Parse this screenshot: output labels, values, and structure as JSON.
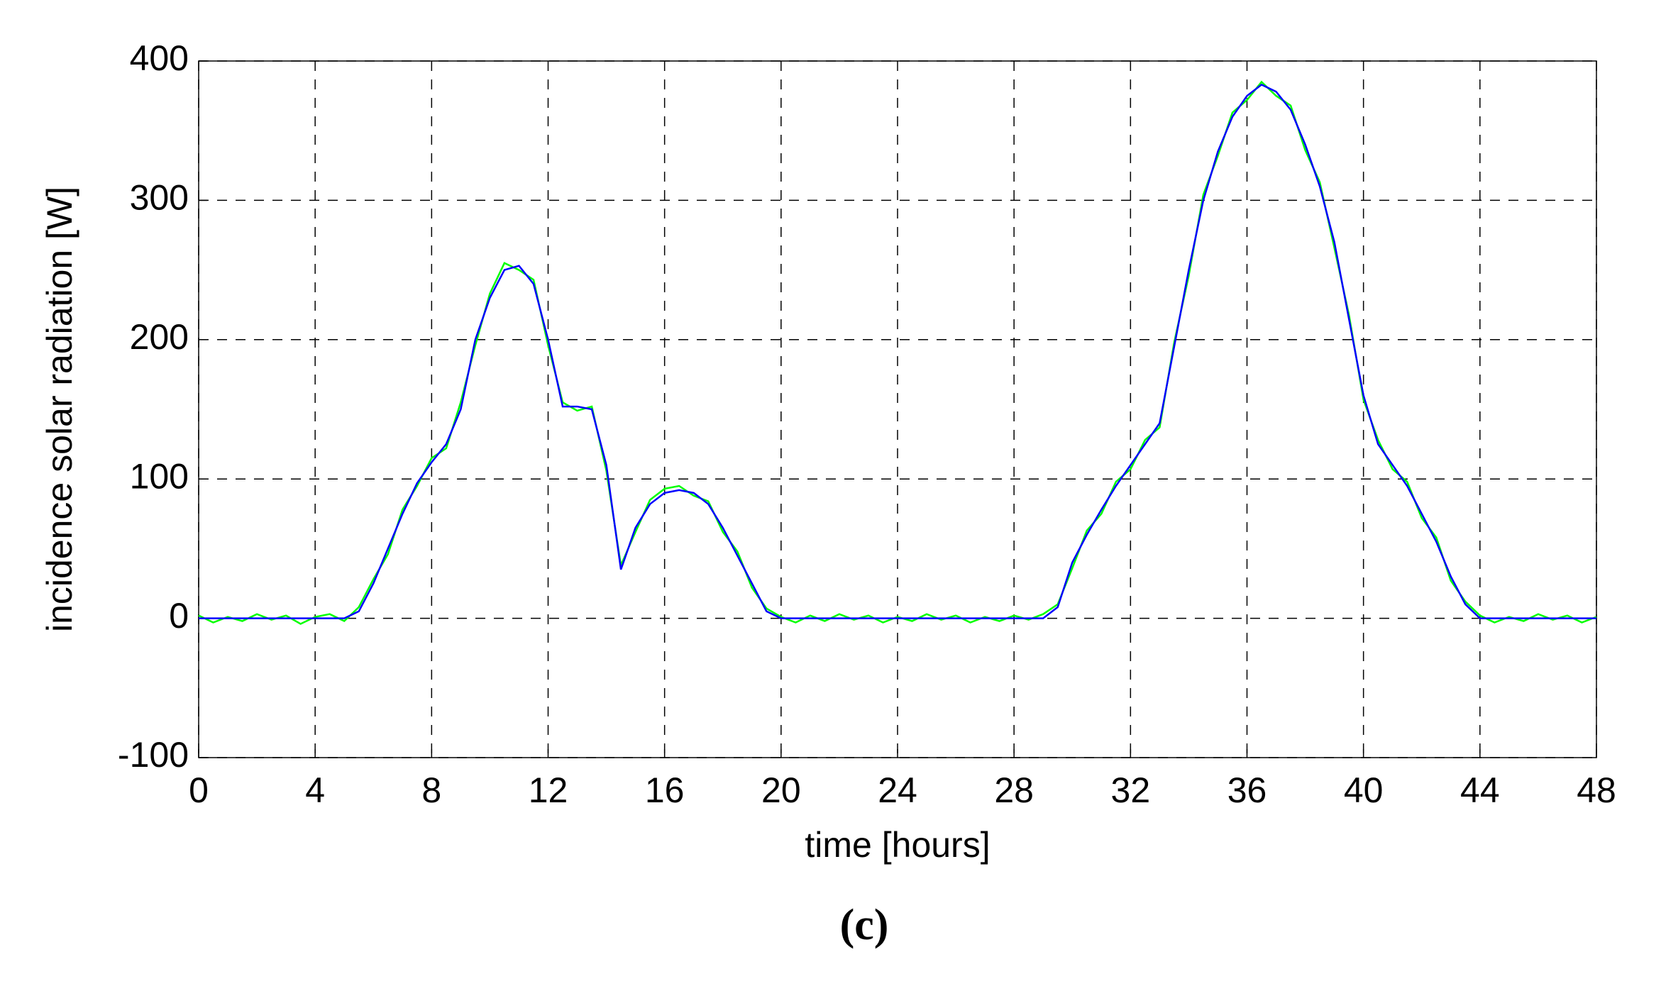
{
  "chart_data": {
    "type": "line",
    "xlabel": "time [hours]",
    "ylabel": "incidence solar radiation [W]",
    "caption": "(c)",
    "x": [
      0,
      0.5,
      1,
      1.5,
      2,
      2.5,
      3,
      3.5,
      4,
      4.5,
      5,
      5.5,
      6,
      6.5,
      7,
      7.5,
      8,
      8.5,
      9,
      9.5,
      10,
      10.5,
      11,
      11.5,
      12,
      12.5,
      13,
      13.5,
      14,
      14.5,
      15,
      15.5,
      16,
      16.5,
      17,
      17.5,
      18,
      18.5,
      19,
      19.5,
      20,
      20.5,
      21,
      21.5,
      22,
      22.5,
      23,
      23.5,
      24,
      24.5,
      25,
      25.5,
      26,
      26.5,
      27,
      27.5,
      28,
      28.5,
      29,
      29.5,
      30,
      30.5,
      31,
      31.5,
      32,
      32.5,
      33,
      33.5,
      34,
      34.5,
      35,
      35.5,
      36,
      36.5,
      37,
      37.5,
      38,
      38.5,
      39,
      39.5,
      40,
      40.5,
      41,
      41.5,
      42,
      42.5,
      43,
      43.5,
      44,
      44.5,
      45,
      45.5,
      46,
      46.5,
      47,
      47.5,
      48
    ],
    "series": [
      {
        "color": "#00ff00",
        "values": [
          2,
          -3,
          1,
          -2,
          3,
          -1,
          2,
          -4,
          1,
          3,
          -2,
          8,
          28,
          46,
          78,
          95,
          115,
          122,
          155,
          196,
          233,
          255,
          250,
          243,
          196,
          155,
          149,
          152,
          106,
          38,
          62,
          85,
          93,
          95,
          88,
          84,
          62,
          48,
          22,
          7,
          1,
          -3,
          2,
          -2,
          3,
          -1,
          2,
          -3,
          1,
          -2,
          3,
          -1,
          2,
          -3,
          1,
          -2,
          2,
          -1,
          3,
          10,
          36,
          63,
          75,
          98,
          107,
          128,
          137,
          198,
          246,
          304,
          332,
          363,
          372,
          385,
          375,
          368,
          336,
          313,
          266,
          218,
          157,
          128,
          107,
          98,
          72,
          58,
          27,
          12,
          2,
          -3,
          1,
          -2,
          3,
          -1,
          2,
          -3,
          1
        ]
      },
      {
        "color": "#0000ff",
        "values": [
          0,
          0,
          0,
          0,
          0,
          0,
          0,
          0,
          0,
          0,
          0,
          5,
          25,
          50,
          75,
          97,
          112,
          125,
          150,
          200,
          230,
          250,
          253,
          240,
          200,
          152,
          152,
          150,
          110,
          35,
          65,
          82,
          90,
          92,
          90,
          82,
          65,
          45,
          25,
          5,
          0,
          0,
          0,
          0,
          0,
          0,
          0,
          0,
          0,
          0,
          0,
          0,
          0,
          0,
          0,
          0,
          0,
          0,
          0,
          8,
          40,
          60,
          78,
          95,
          110,
          125,
          140,
          195,
          250,
          300,
          335,
          360,
          375,
          383,
          378,
          365,
          340,
          310,
          270,
          215,
          160,
          125,
          110,
          95,
          75,
          55,
          30,
          10,
          0,
          0,
          0,
          0,
          0,
          0,
          0,
          0,
          0
        ]
      }
    ],
    "xlim": [
      0,
      48
    ],
    "xticks": [
      0,
      4,
      8,
      12,
      16,
      20,
      24,
      28,
      32,
      36,
      40,
      44,
      48
    ],
    "ylim": [
      -100,
      400
    ],
    "yticks": [
      -100,
      0,
      100,
      200,
      300,
      400
    ],
    "grid": true
  }
}
